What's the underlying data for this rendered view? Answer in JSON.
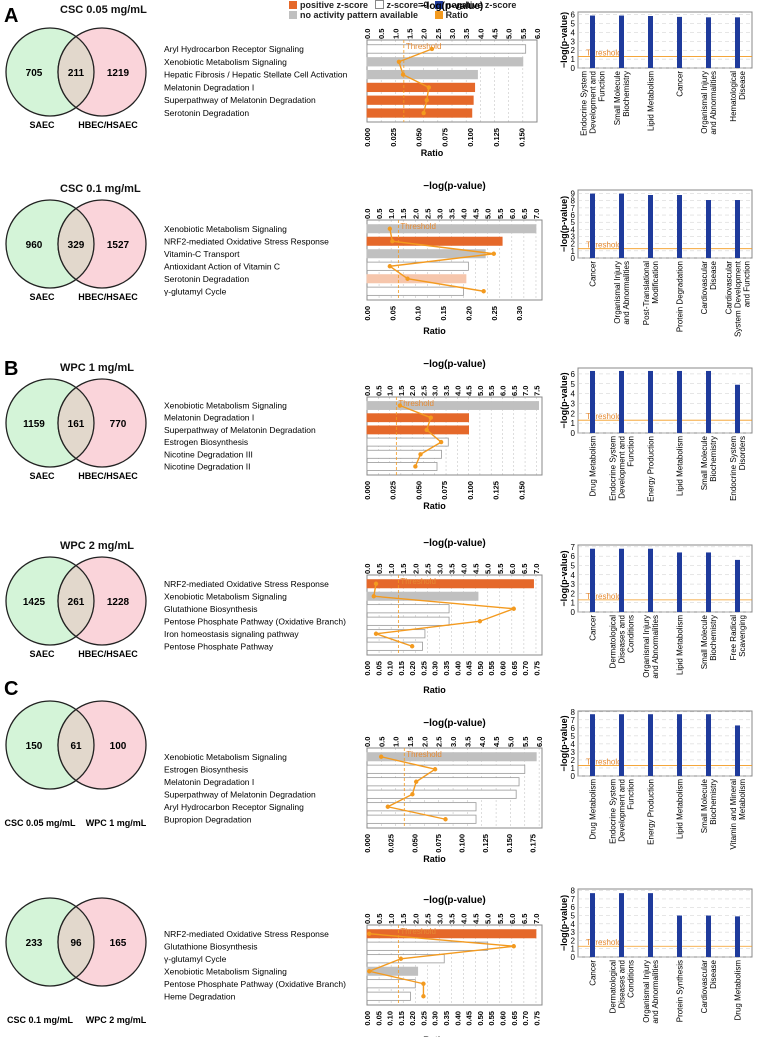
{
  "legend": {
    "positive": "positive z-score",
    "zero": "z-score=0",
    "negative": "negative z-score",
    "noactivity": "no activity pattern available",
    "ratio": "Ratio"
  },
  "colors": {
    "orange": "#e5682a",
    "lightorange": "#f6c6ac",
    "grey": "#c0c0c0",
    "blue": "#1f3b9c",
    "line": "#f39a1f",
    "venn_left": "#d4f4d8",
    "venn_right": "#fad4da",
    "venn_mid": "#e2d8cc"
  },
  "panel_letters": [
    "A",
    "B",
    "C"
  ],
  "common": {
    "xaxis_top": "−log(p-value)",
    "xaxis_bottom": "Ratio",
    "threshold": "Threshold",
    "yaxis_right": "−log(p-value)"
  },
  "chart_data": [
    {
      "type": "bar",
      "venn": {
        "title": "CSC 0.05 mg/mL",
        "left": 705,
        "mid": 211,
        "right": 1219,
        "left_label": "SAEC",
        "right_label": "HBEC/HSAEC"
      },
      "pathways": {
        "categories": [
          "Aryl Hydrocarbon Receptor Signaling",
          "Xenobiotic Metabolism Signaling",
          "Hepatic Fibrosis / Hepatic Stellate Cell Activation",
          "Melatonin Degradation I",
          "Superpathway of Melatonin Degradation",
          "Serotonin Degradation"
        ],
        "neglogp": [
          5.6,
          5.5,
          3.9,
          3.8,
          3.75,
          3.7
        ],
        "ratio": [
          0.063,
          0.031,
          0.035,
          0.06,
          0.058,
          0.055
        ],
        "zscore": [
          "zero",
          "noactivity",
          "noactivity",
          "positive",
          "positive",
          "positive"
        ],
        "top_ticks": [
          "0.0",
          "0.5",
          "1.0",
          "1.5",
          "2.0",
          "2.5",
          "3.0",
          "3.5",
          "4.0",
          "4.5",
          "5.0",
          "5.5",
          "6.0"
        ],
        "bottom_ticks": [
          "0.000",
          "0.025",
          "0.050",
          "0.075",
          "0.100",
          "0.125",
          "0.150"
        ],
        "top_max": 6.0,
        "ratio_max": 0.165,
        "threshold": 1.3
      },
      "diseases": {
        "categories": [
          "Endocrine System Development and Function",
          "Small Molecule Biochemistry",
          "Lipid Metabolism",
          "Cancer",
          "Organismal Injury and Abnormalities",
          "Hematological Disease"
        ],
        "values": [
          5.9,
          5.9,
          5.85,
          5.75,
          5.7,
          5.7
        ],
        "yticks": [
          "0",
          "1",
          "2",
          "3",
          "4",
          "5",
          "6"
        ],
        "ymax": 6.3
      }
    },
    {
      "type": "bar",
      "venn": {
        "title": "CSC 0.1 mg/mL",
        "left": 960,
        "mid": 329,
        "right": 1527,
        "left_label": "SAEC",
        "right_label": "HBEC/HSAEC"
      },
      "pathways": {
        "categories": [
          "Xenobiotic Metabolism Signaling",
          "NRF2-mediated Oxidative Stress Response",
          "Vitamin-C Transport",
          "Antioxidant Action of Vitamin C",
          "Serotonin Degradation",
          "γ-glutamyl Cycle"
        ],
        "neglogp": [
          7.0,
          5.6,
          4.9,
          4.2,
          4.1,
          4.0
        ],
        "ratio": [
          0.045,
          0.05,
          0.25,
          0.045,
          0.08,
          0.23
        ],
        "zscore": [
          "noactivity",
          "positive",
          "noactivity",
          "zero",
          "lightpositive",
          "zero"
        ],
        "top_ticks": [
          "0.0",
          "0.5",
          "1.0",
          "1.5",
          "2.0",
          "2.5",
          "3.0",
          "3.5",
          "4.0",
          "4.5",
          "5.0",
          "5.5",
          "6.0",
          "6.5",
          "7.0"
        ],
        "bottom_ticks": [
          "0.00",
          "0.05",
          "0.10",
          "0.15",
          "0.20",
          "0.25",
          "0.30"
        ],
        "top_max": 7.25,
        "ratio_max": 0.345,
        "threshold": 1.3
      },
      "diseases": {
        "categories": [
          "Cancer",
          "Organismal Injury and Abnormalities",
          "Post-Translational Modification",
          "Protein Degradation",
          "Cardiovascular Disease",
          "Cardiovascular System Development and Function"
        ],
        "values": [
          9.0,
          9.0,
          8.8,
          8.8,
          8.1,
          8.1
        ],
        "yticks": [
          "0",
          "1",
          "2",
          "3",
          "4",
          "5",
          "6",
          "7",
          "8",
          "9"
        ],
        "ymax": 9.5
      }
    },
    {
      "type": "bar",
      "venn": {
        "title": "WPC 1 mg/mL",
        "left": 1159,
        "mid": 161,
        "right": 770,
        "left_label": "SAEC",
        "right_label": "HBEC/HSAEC"
      },
      "pathways": {
        "categories": [
          "Xenobiotic Metabolism Signaling",
          "Melatonin Degradation I",
          "Superpathway of Melatonin Degradation",
          "Estrogen Biosynthesis",
          "Nicotine Degradation III",
          "Nicotine Degradation II"
        ],
        "neglogp": [
          7.6,
          4.5,
          4.5,
          3.6,
          3.3,
          3.1
        ],
        "ratio": [
          0.032,
          0.062,
          0.058,
          0.072,
          0.052,
          0.047
        ],
        "zscore": [
          "noactivity",
          "positive",
          "positive",
          "zero",
          "zero",
          "zero"
        ],
        "top_ticks": [
          "0.0",
          "0.5",
          "1.0",
          "1.5",
          "2.0",
          "2.5",
          "3.0",
          "3.5",
          "4.0",
          "4.5",
          "5.0",
          "5.5",
          "6.0",
          "6.5",
          "7.0",
          "7.5"
        ],
        "bottom_ticks": [
          "0.000",
          "0.025",
          "0.050",
          "0.075",
          "0.100",
          "0.125",
          "0.150"
        ],
        "top_max": 7.75,
        "ratio_max": 0.17,
        "threshold": 1.3
      },
      "diseases": {
        "categories": [
          "Drug Metabolism",
          "Endocrine System Development and Function",
          "Energy Production",
          "Lipid Metabolism",
          "Small Molecule Biochemistry",
          "Endocrine System Disorders"
        ],
        "values": [
          6.3,
          6.3,
          6.3,
          6.3,
          6.3,
          4.9
        ],
        "yticks": [
          "0",
          "1",
          "2",
          "3",
          "4",
          "5",
          "6"
        ],
        "ymax": 6.6
      }
    },
    {
      "type": "bar",
      "venn": {
        "title": "WPC 2 mg/mL",
        "left": 1425,
        "mid": 261,
        "right": 1228,
        "left_label": "SAEC",
        "right_label": "HBEC/HSAEC"
      },
      "pathways": {
        "categories": [
          "NRF2-mediated Oxidative Stress Response",
          "Xenobiotic Metabolism Signaling",
          "Glutathione Biosynthesis",
          "Pentose Phosphate Pathway (Oxidative Branch)",
          "Iron homeostasis signaling pathway",
          "Pentose Phosphate Pathway"
        ],
        "neglogp": [
          6.9,
          4.6,
          3.4,
          3.4,
          2.4,
          2.3
        ],
        "ratio": [
          0.04,
          0.03,
          0.65,
          0.5,
          0.04,
          0.2
        ],
        "zscore": [
          "positive",
          "noactivity",
          "zero",
          "zero",
          "zero",
          "zero"
        ],
        "top_ticks": [
          "0.0",
          "0.5",
          "1.0",
          "1.5",
          "2.0",
          "2.5",
          "3.0",
          "3.5",
          "4.0",
          "4.5",
          "5.0",
          "5.5",
          "6.0",
          "6.5",
          "7.0"
        ],
        "bottom_ticks": [
          "0.00",
          "0.05",
          "0.10",
          "0.15",
          "0.20",
          "0.25",
          "0.30",
          "0.35",
          "0.40",
          "0.45",
          "0.50",
          "0.55",
          "0.60",
          "0.65",
          "0.70",
          "0.75"
        ],
        "top_max": 7.25,
        "ratio_max": 0.775,
        "threshold": 1.3
      },
      "diseases": {
        "categories": [
          "Cancer",
          "Dermatological Diseases and Conditions",
          "Organismal Injury and Abnormalities",
          "Lipid Metabolism",
          "Small Molecule Biochemistry",
          "Free Radical Scavenging"
        ],
        "values": [
          6.8,
          6.8,
          6.8,
          6.4,
          6.4,
          5.6
        ],
        "yticks": [
          "0",
          "1",
          "2",
          "3",
          "4",
          "5",
          "6",
          "7"
        ],
        "ymax": 7.2
      }
    },
    {
      "type": "bar",
      "venn": {
        "title": "",
        "left": 150,
        "mid": 61,
        "right": 100,
        "left_label": "CSC 0.05 mg/mL",
        "right_label": "WPC 1 mg/mL"
      },
      "pathways": {
        "categories": [
          "Xenobiotic Metabolism Signaling",
          "Estrogen Biosynthesis",
          "Melatonin Degradation I",
          "Superpathway of Melatonin Degradation",
          "Aryl Hydrocarbon Receptor Signaling",
          "Bupropion Degradation"
        ],
        "neglogp": [
          5.9,
          5.5,
          5.3,
          5.2,
          3.8,
          3.8
        ],
        "ratio": [
          0.015,
          0.072,
          0.052,
          0.048,
          0.022,
          0.083
        ],
        "zscore": [
          "noactivity",
          "zero",
          "zero",
          "zero",
          "zero",
          "zero"
        ],
        "top_ticks": [
          "0.0",
          "0.5",
          "1.0",
          "1.5",
          "2.0",
          "2.5",
          "3.0",
          "3.5",
          "4.0",
          "4.5",
          "5.0",
          "5.5",
          "6.0"
        ],
        "bottom_ticks": [
          "0.000",
          "0.025",
          "0.050",
          "0.075",
          "0.100",
          "0.125",
          "0.150",
          "0.175"
        ],
        "top_max": 6.1,
        "ratio_max": 0.185,
        "threshold": 1.3
      },
      "diseases": {
        "categories": [
          "Drug Metabolism",
          "Endocrine System Development and Function",
          "Energy Production",
          "Lipid Metabolism",
          "Small Molecule Biochemistry",
          "Vitamin and Mineral Metabolism"
        ],
        "values": [
          7.7,
          7.7,
          7.7,
          7.7,
          7.7,
          6.3
        ],
        "yticks": [
          "0",
          "1",
          "2",
          "3",
          "4",
          "5",
          "6",
          "7",
          "8"
        ],
        "ymax": 8.1
      }
    },
    {
      "type": "bar",
      "venn": {
        "title": "",
        "left": 233,
        "mid": 96,
        "right": 165,
        "left_label": "CSC 0.1 mg/mL",
        "right_label": "WPC 2 mg/mL"
      },
      "pathways": {
        "categories": [
          "NRF2-mediated Oxidative Stress Response",
          "Glutathione Biosynthesis",
          "γ-glutamyl Cycle",
          "Xenobiotic Metabolism Signaling",
          "Pentose Phosphate Pathway (Oxidative Branch)",
          "Heme Degradation"
        ],
        "neglogp": [
          7.0,
          5.0,
          3.2,
          2.1,
          2.0,
          1.8
        ],
        "ratio": [
          0.01,
          0.65,
          0.15,
          0.01,
          0.25,
          0.25
        ],
        "zscore": [
          "positive",
          "zero",
          "zero",
          "noactivity",
          "zero",
          "zero"
        ],
        "top_ticks": [
          "0.0",
          "0.5",
          "1.0",
          "1.5",
          "2.0",
          "2.5",
          "3.0",
          "3.5",
          "4.0",
          "4.5",
          "5.0",
          "5.5",
          "6.0",
          "6.5",
          "7.0"
        ],
        "bottom_ticks": [
          "0.00",
          "0.05",
          "0.10",
          "0.15",
          "0.20",
          "0.25",
          "0.30",
          "0.35",
          "0.40",
          "0.45",
          "0.50",
          "0.55",
          "0.60",
          "0.65",
          "0.70",
          "0.75"
        ],
        "top_max": 7.25,
        "ratio_max": 0.775,
        "threshold": 1.3
      },
      "diseases": {
        "categories": [
          "Cancer",
          "Dermatological Diseases and Conditions",
          "Organismal Injury and Abnormalities",
          "Protein Synthesis",
          "Cardiovascular Disease",
          "Drug Metabolism"
        ],
        "values": [
          7.7,
          7.7,
          7.7,
          5.0,
          5.0,
          4.9
        ],
        "yticks": [
          "0",
          "1",
          "2",
          "3",
          "4",
          "5",
          "6",
          "7",
          "8"
        ],
        "ymax": 8.2
      }
    }
  ]
}
